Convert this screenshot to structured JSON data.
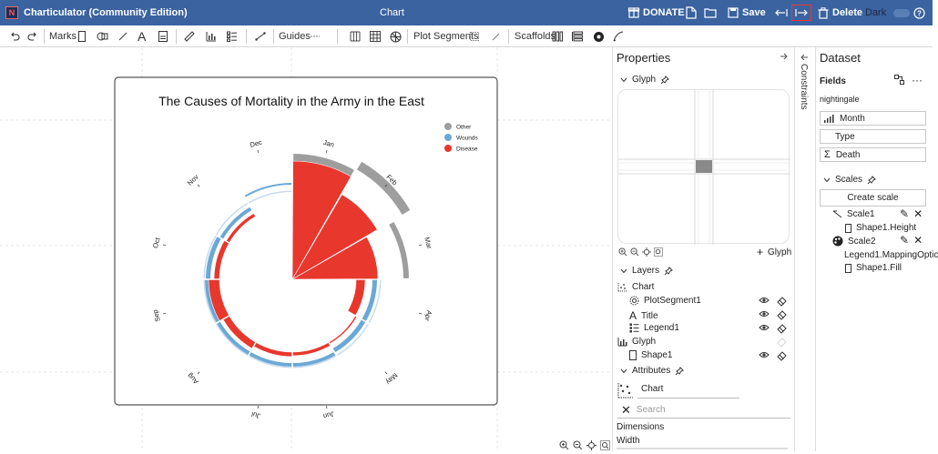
{
  "titlebar": {
    "app_name": "Charticulator (Community Edition)",
    "doc_title": "Chart",
    "donate": "DONATE",
    "save": "Save",
    "delete": "Delete",
    "theme": "Dark"
  },
  "toolbar": {
    "marks": "Marks",
    "guides": "Guides",
    "plot_segments": "Plot Segments",
    "scaffolds": "Scaffolds"
  },
  "chart": {
    "title": "The Causes of Mortality in the Army in the East",
    "legend": [
      {
        "label": "Other",
        "color": "#9e9e9e"
      },
      {
        "label": "Wounds",
        "color": "#6ba8d6"
      },
      {
        "label": "Disease",
        "color": "#e8372d"
      }
    ],
    "months": [
      "Jan",
      "Feb",
      "Mar",
      "Apr",
      "May",
      "Jun",
      "Jul",
      "Aug",
      "Sep",
      "Oct",
      "Nov",
      "Dec"
    ],
    "zoom_icons": [
      "zoom-in",
      "zoom-out",
      "zoom-fit",
      "zoom-reset"
    ]
  },
  "properties": {
    "header": "Properties",
    "glyph_section": "Glyph",
    "add_glyph": "Glyph",
    "layers_section": "Layers",
    "layers": [
      {
        "label": "Chart",
        "level": 0
      },
      {
        "label": "PlotSegment1",
        "level": 1
      },
      {
        "label": "Title",
        "level": 1
      },
      {
        "label": "Legend1",
        "level": 1
      },
      {
        "label": "Glyph",
        "level": 0
      },
      {
        "label": "Shape1",
        "level": 1
      }
    ],
    "attributes_section": "Attributes",
    "attr_chart_name": "Chart",
    "search_placeholder": "Search",
    "dimensions": "Dimensions",
    "width_label": "Width"
  },
  "constraints": {
    "label": "Constraints"
  },
  "dataset": {
    "header": "Dataset",
    "fields": "Fields",
    "table_name": "nightingale",
    "columns": [
      "Month",
      "Type",
      "Death"
    ],
    "scales_section": "Scales",
    "create_scale": "Create scale",
    "scales": [
      {
        "name": "Scale1",
        "mapping": "Shape1.Height"
      },
      {
        "name": "Scale2",
        "mapping_a": "Legend1.MappingOptic",
        "mapping_b": "Shape1.Fill"
      }
    ]
  },
  "colors": {
    "titlebar": "#3a63a0",
    "disease": "#e8372d",
    "wounds": "#6ba8d6",
    "other": "#9e9e9e"
  }
}
